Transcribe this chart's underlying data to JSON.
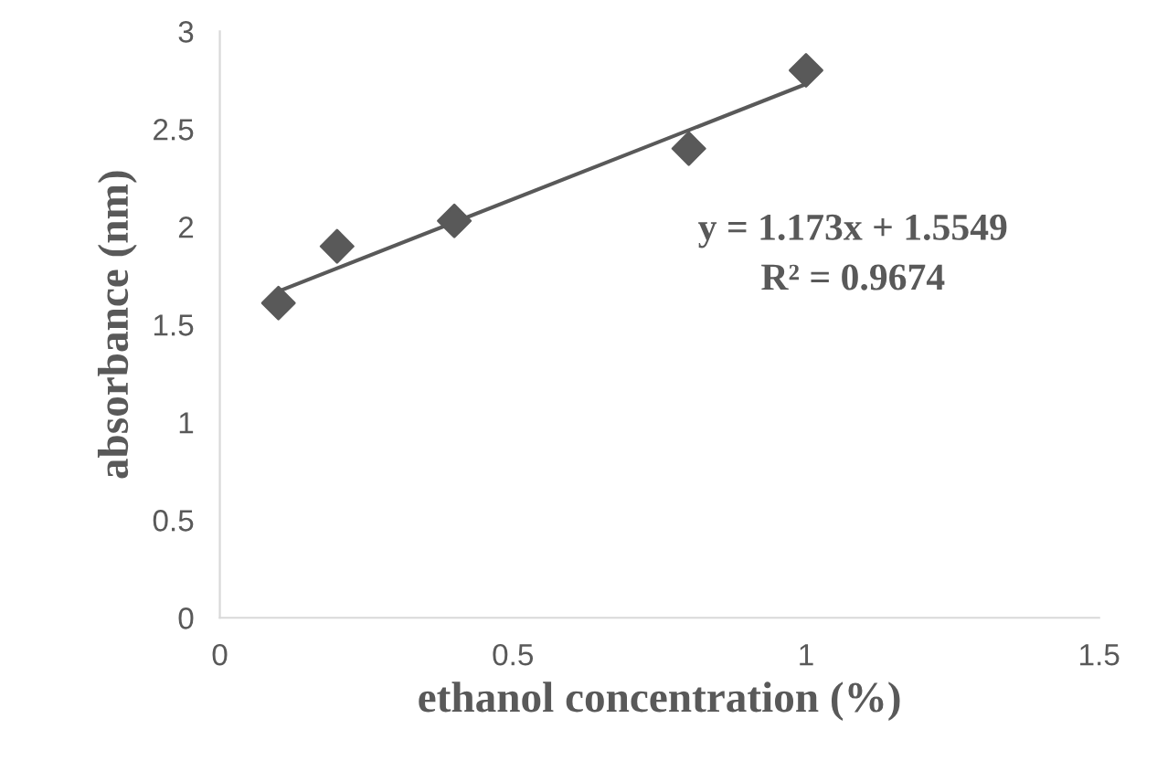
{
  "chart_data": {
    "type": "scatter",
    "xlabel": "ethanol concentration (%)",
    "ylabel": "absorbance (nm)",
    "x": [
      0.1,
      0.2,
      0.4,
      0.8,
      1.0
    ],
    "series": [
      {
        "color": "#595959",
        "marker": "diamond",
        "values": [
          1.61,
          1.9,
          2.03,
          2.4,
          2.8
        ]
      },
      {
        "type": "line",
        "color": "#595959",
        "x": [
          0.1,
          1.0
        ],
        "values": [
          1.67,
          2.73
        ],
        "line_style": "solid",
        "marker": "none"
      }
    ],
    "xlim": [
      0,
      1.5
    ],
    "ylim": [
      0,
      3
    ],
    "xticks": [
      0,
      0.5,
      1,
      1.5
    ],
    "yticks": [
      0,
      0.5,
      1,
      1.5,
      2,
      2.5,
      3
    ],
    "grid": false,
    "legend": false,
    "annotations": [
      "y = 1.173x + 1.5549",
      "R² = 0.9674"
    ]
  }
}
